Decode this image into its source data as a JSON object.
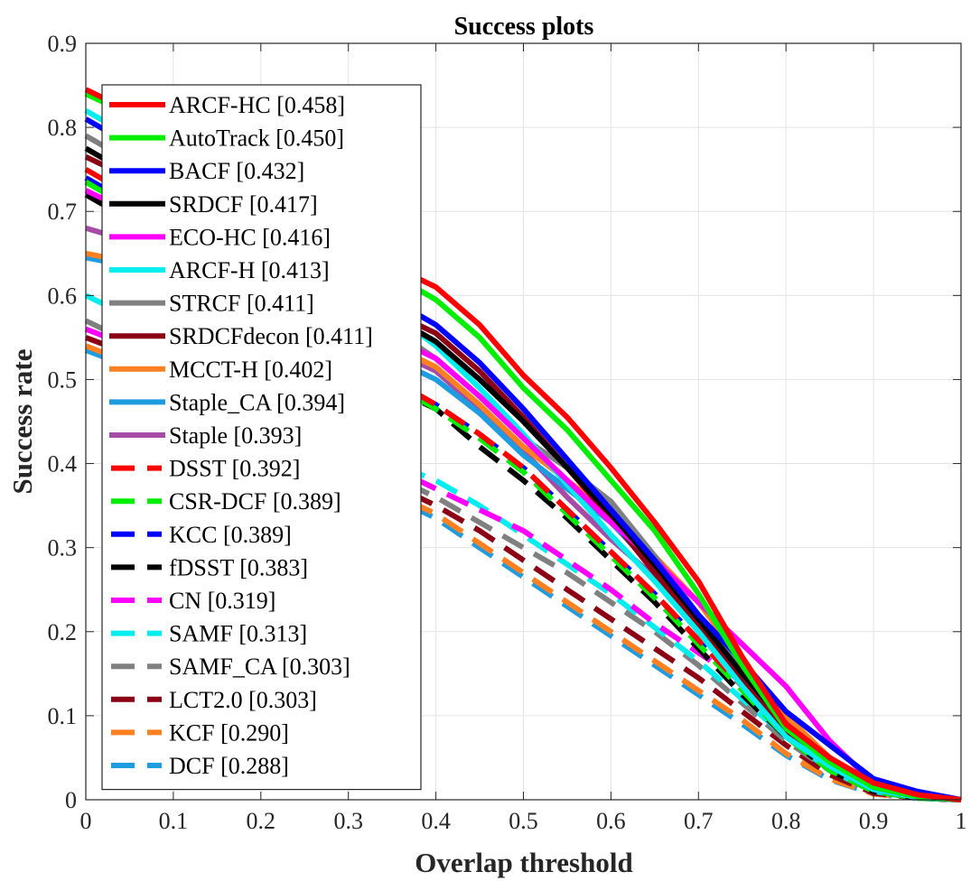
{
  "chart_data": {
    "type": "line",
    "title": "Success plots",
    "xlabel": "Overlap threshold",
    "ylabel": "Success rate",
    "xlim": [
      0,
      1
    ],
    "ylim": [
      0,
      0.9
    ],
    "xticks": [
      "0",
      "0.1",
      "0.2",
      "0.3",
      "0.4",
      "0.5",
      "0.6",
      "0.7",
      "0.8",
      "0.9",
      "1"
    ],
    "yticks": [
      "0",
      "0.1",
      "0.2",
      "0.3",
      "0.4",
      "0.5",
      "0.6",
      "0.7",
      "0.8",
      "0.9"
    ],
    "grid": true,
    "legend_position": "top-left",
    "x": [
      0,
      0.05,
      0.1,
      0.15,
      0.2,
      0.25,
      0.3,
      0.35,
      0.4,
      0.45,
      0.5,
      0.55,
      0.6,
      0.65,
      0.7,
      0.75,
      0.8,
      0.85,
      0.9,
      0.95,
      1
    ],
    "series": [
      {
        "name": "ARCF-HC [0.458]",
        "color": "#ff0000",
        "dash": false,
        "values": [
          0.845,
          0.82,
          0.79,
          0.76,
          0.72,
          0.685,
          0.65,
          0.635,
          0.61,
          0.565,
          0.505,
          0.455,
          0.395,
          0.33,
          0.26,
          0.17,
          0.09,
          0.05,
          0.02,
          0.006,
          0.0
        ]
      },
      {
        "name": "AutoTrack [0.450]",
        "color": "#00ee00",
        "dash": false,
        "values": [
          0.84,
          0.815,
          0.785,
          0.75,
          0.715,
          0.68,
          0.645,
          0.625,
          0.595,
          0.55,
          0.49,
          0.44,
          0.38,
          0.32,
          0.245,
          0.16,
          0.085,
          0.045,
          0.015,
          0.004,
          0.0
        ]
      },
      {
        "name": "BACF [0.432]",
        "color": "#0000ff",
        "dash": false,
        "values": [
          0.81,
          0.78,
          0.75,
          0.715,
          0.68,
          0.645,
          0.61,
          0.595,
          0.565,
          0.52,
          0.465,
          0.405,
          0.345,
          0.285,
          0.22,
          0.165,
          0.105,
          0.065,
          0.025,
          0.01,
          0.0
        ]
      },
      {
        "name": "SRDCF [0.417]",
        "color": "#000000",
        "dash": false,
        "values": [
          0.775,
          0.745,
          0.715,
          0.685,
          0.655,
          0.625,
          0.595,
          0.575,
          0.545,
          0.5,
          0.45,
          0.395,
          0.34,
          0.28,
          0.215,
          0.15,
          0.09,
          0.05,
          0.015,
          0.004,
          0.0
        ]
      },
      {
        "name": "ECO-HC [0.416]",
        "color": "#ff00ff",
        "dash": false,
        "values": [
          0.725,
          0.7,
          0.675,
          0.65,
          0.625,
          0.6,
          0.57,
          0.55,
          0.525,
          0.48,
          0.43,
          0.38,
          0.33,
          0.285,
          0.235,
          0.185,
          0.135,
          0.07,
          0.02,
          0.005,
          0.0
        ]
      },
      {
        "name": "ARCF-H [0.413]",
        "color": "#00eeee",
        "dash": false,
        "values": [
          0.82,
          0.79,
          0.76,
          0.725,
          0.69,
          0.655,
          0.615,
          0.58,
          0.54,
          0.49,
          0.435,
          0.375,
          0.315,
          0.26,
          0.2,
          0.135,
          0.075,
          0.04,
          0.012,
          0.003,
          0.0
        ]
      },
      {
        "name": "STRCF [0.411]",
        "color": "#808080",
        "dash": false,
        "values": [
          0.79,
          0.76,
          0.73,
          0.695,
          0.66,
          0.625,
          0.59,
          0.56,
          0.525,
          0.48,
          0.43,
          0.395,
          0.355,
          0.29,
          0.22,
          0.15,
          0.09,
          0.045,
          0.013,
          0.003,
          0.0
        ]
      },
      {
        "name": "SRDCFdecon [0.411]",
        "color": "#8b0015",
        "dash": false,
        "values": [
          0.765,
          0.74,
          0.715,
          0.69,
          0.66,
          0.63,
          0.6,
          0.58,
          0.555,
          0.51,
          0.455,
          0.395,
          0.335,
          0.27,
          0.205,
          0.14,
          0.08,
          0.04,
          0.012,
          0.003,
          0.0
        ]
      },
      {
        "name": "MCCT-H [0.402]",
        "color": "#ff8020",
        "dash": false,
        "values": [
          0.65,
          0.64,
          0.63,
          0.615,
          0.6,
          0.58,
          0.56,
          0.54,
          0.515,
          0.47,
          0.42,
          0.38,
          0.34,
          0.29,
          0.235,
          0.165,
          0.1,
          0.05,
          0.015,
          0.004,
          0.0
        ]
      },
      {
        "name": "Staple_CA [0.394]",
        "color": "#1f9be0",
        "dash": false,
        "values": [
          0.645,
          0.635,
          0.62,
          0.605,
          0.585,
          0.565,
          0.545,
          0.525,
          0.5,
          0.46,
          0.41,
          0.37,
          0.33,
          0.275,
          0.22,
          0.155,
          0.09,
          0.045,
          0.013,
          0.003,
          0.0
        ]
      },
      {
        "name": "Staple [0.393]",
        "color": "#a64ca6",
        "dash": false,
        "values": [
          0.68,
          0.665,
          0.65,
          0.63,
          0.61,
          0.585,
          0.56,
          0.535,
          0.51,
          0.465,
          0.415,
          0.36,
          0.31,
          0.265,
          0.215,
          0.155,
          0.09,
          0.045,
          0.012,
          0.003,
          0.0
        ]
      },
      {
        "name": "DSST [0.392]",
        "color": "#ff0000",
        "dash": true,
        "values": [
          0.75,
          0.72,
          0.69,
          0.655,
          0.615,
          0.575,
          0.535,
          0.5,
          0.47,
          0.435,
          0.395,
          0.345,
          0.295,
          0.245,
          0.19,
          0.135,
          0.08,
          0.04,
          0.012,
          0.003,
          0.0
        ]
      },
      {
        "name": "CSR-DCF [0.389]",
        "color": "#00ee00",
        "dash": true,
        "values": [
          0.735,
          0.705,
          0.675,
          0.64,
          0.6,
          0.56,
          0.525,
          0.495,
          0.465,
          0.43,
          0.39,
          0.34,
          0.29,
          0.24,
          0.185,
          0.13,
          0.075,
          0.035,
          0.01,
          0.002,
          0.0
        ]
      },
      {
        "name": "KCC [0.389]",
        "color": "#0000ff",
        "dash": true,
        "values": [
          0.74,
          0.71,
          0.68,
          0.645,
          0.605,
          0.565,
          0.53,
          0.5,
          0.47,
          0.435,
          0.395,
          0.345,
          0.295,
          0.245,
          0.19,
          0.135,
          0.08,
          0.04,
          0.012,
          0.003,
          0.0
        ]
      },
      {
        "name": "fDSST [0.383]",
        "color": "#000000",
        "dash": true,
        "values": [
          0.72,
          0.69,
          0.66,
          0.625,
          0.59,
          0.55,
          0.515,
          0.49,
          0.465,
          0.42,
          0.38,
          0.335,
          0.285,
          0.235,
          0.18,
          0.125,
          0.075,
          0.035,
          0.01,
          0.002,
          0.0
        ]
      },
      {
        "name": "CN [0.319]",
        "color": "#ff00ff",
        "dash": true,
        "values": [
          0.56,
          0.54,
          0.52,
          0.495,
          0.47,
          0.445,
          0.42,
          0.395,
          0.37,
          0.345,
          0.32,
          0.285,
          0.25,
          0.21,
          0.175,
          0.14,
          0.095,
          0.05,
          0.015,
          0.003,
          0.0
        ]
      },
      {
        "name": "SAMF [0.313]",
        "color": "#00eeee",
        "dash": true,
        "values": [
          0.6,
          0.575,
          0.545,
          0.51,
          0.48,
          0.45,
          0.425,
          0.4,
          0.38,
          0.35,
          0.315,
          0.28,
          0.245,
          0.205,
          0.165,
          0.12,
          0.075,
          0.035,
          0.01,
          0.002,
          0.0
        ]
      },
      {
        "name": "SAMF_CA [0.303]",
        "color": "#808080",
        "dash": true,
        "values": [
          0.57,
          0.545,
          0.52,
          0.49,
          0.46,
          0.43,
          0.405,
          0.385,
          0.36,
          0.33,
          0.3,
          0.27,
          0.235,
          0.2,
          0.16,
          0.115,
          0.07,
          0.035,
          0.01,
          0.002,
          0.0
        ]
      },
      {
        "name": "LCT2.0 [0.303]",
        "color": "#8b0015",
        "dash": true,
        "values": [
          0.55,
          0.53,
          0.51,
          0.485,
          0.46,
          0.43,
          0.4,
          0.375,
          0.35,
          0.32,
          0.285,
          0.25,
          0.215,
          0.18,
          0.145,
          0.105,
          0.065,
          0.03,
          0.008,
          0.002,
          0.0
        ]
      },
      {
        "name": "KCF [0.290]",
        "color": "#ff8020",
        "dash": true,
        "values": [
          0.54,
          0.52,
          0.5,
          0.475,
          0.45,
          0.42,
          0.39,
          0.365,
          0.34,
          0.305,
          0.27,
          0.235,
          0.2,
          0.165,
          0.13,
          0.095,
          0.055,
          0.025,
          0.007,
          0.002,
          0.0
        ]
      },
      {
        "name": "DCF [0.288]",
        "color": "#1f9be0",
        "dash": true,
        "values": [
          0.535,
          0.515,
          0.495,
          0.47,
          0.445,
          0.415,
          0.385,
          0.36,
          0.335,
          0.3,
          0.265,
          0.23,
          0.195,
          0.16,
          0.125,
          0.09,
          0.053,
          0.024,
          0.007,
          0.002,
          0.0
        ]
      }
    ]
  }
}
